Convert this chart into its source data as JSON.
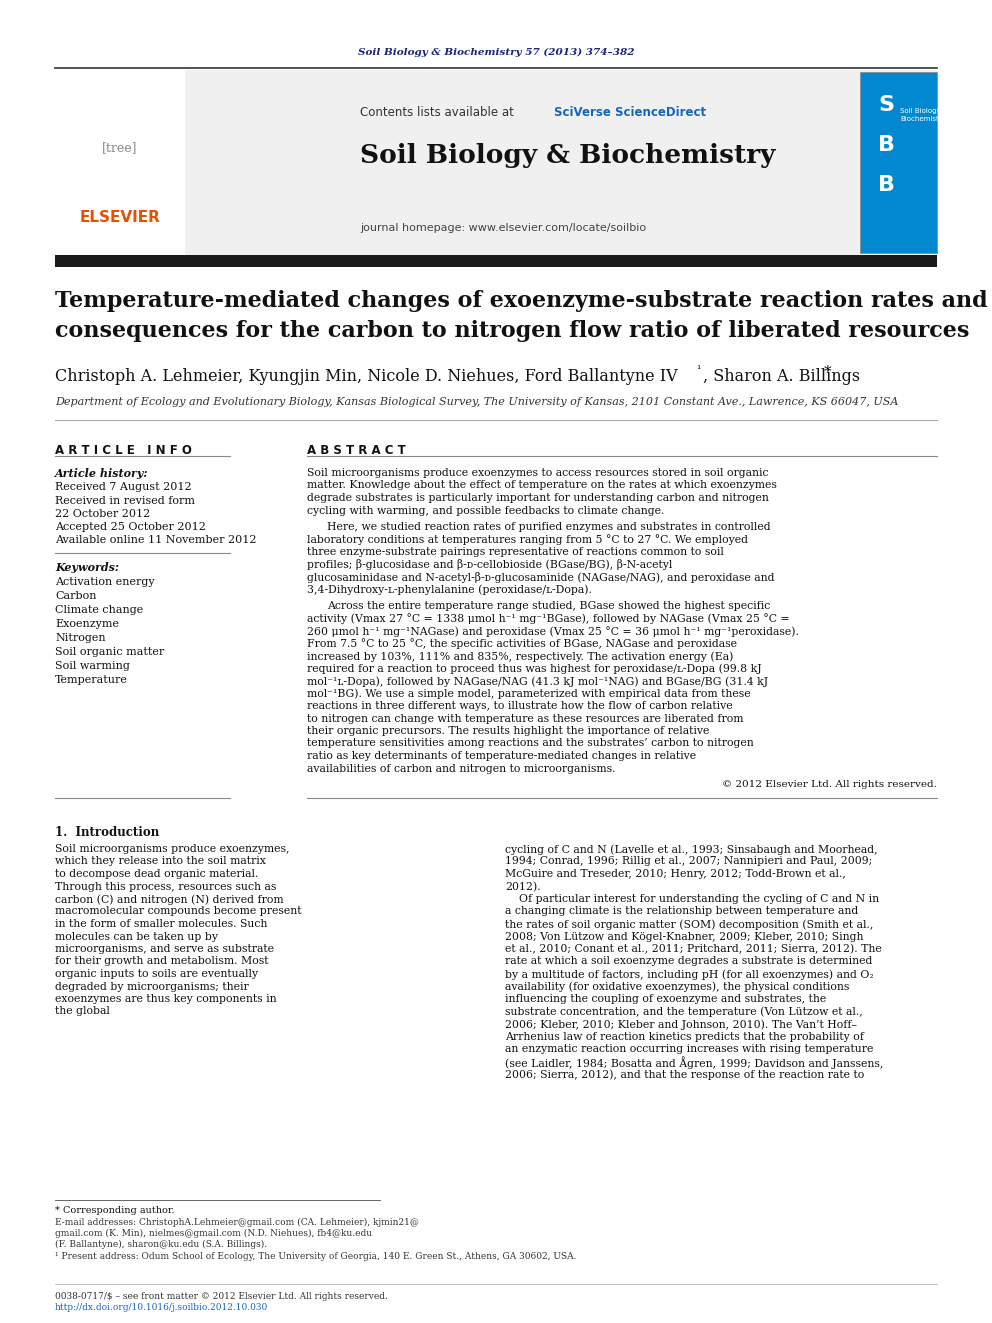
{
  "page_bg": "#ffffff",
  "journal_ref_color": "#1a237e",
  "journal_ref": "Soil Biology & Biochemistry 57 (2013) 374–382",
  "sciverse_color": "#1565c0",
  "journal_title": "Soil Biology & Biochemistry",
  "homepage_text": "journal homepage: www.elsevier.com/locate/soilbio",
  "affiliation": "Department of Ecology and Evolutionary Biology, Kansas Biological Survey, The University of Kansas, 2101 Constant Ave., Lawrence, KS 66047, USA",
  "article_info_title": "A R T I C L E   I N F O",
  "abstract_title": "A B S T R A C T",
  "received": "Received 7 August 2012",
  "accepted": "Accepted 25 October 2012",
  "available": "Available online 11 November 2012",
  "keywords": [
    "Activation energy",
    "Carbon",
    "Climate change",
    "Exoenzyme",
    "Nitrogen",
    "Soil organic matter",
    "Soil warming",
    "Temperature"
  ],
  "abstract_p1": "Soil microorganisms produce exoenzymes to access resources stored in soil organic matter. Knowledge about the effect of temperature on the rates at which exoenzymes degrade substrates is particularly important for understanding carbon and nitrogen cycling with warming, and possible feedbacks to climate change.",
  "abstract_p2": "Here, we studied reaction rates of purified enzymes and substrates in controlled laboratory conditions at temperatures ranging from 5 °C to 27 °C. We employed three enzyme-substrate pairings representative of reactions common to soil profiles; β-glucosidase and β-ᴅ-cellobioside (BGase/BG), β-N-acetyl glucosaminidase and N-acetyl-β-ᴅ-glucosaminide (NAGase/NAG), and peroxidase and 3,4-Dihydroxy-ʟ-phenylalanine (peroxidase/ʟ-Dopa).",
  "abstract_p3": "Across the entire temperature range studied, BGase showed the highest specific activity (Vmax 27 °C = 1338 μmol h⁻¹ mg⁻¹BGase), followed by NAGase (Vmax 25 °C = 260 μmol h⁻¹ mg⁻¹NAGase) and peroxidase (Vmax 25 °C = 36 μmol h⁻¹ mg⁻¹peroxidase). From 7.5 °C to 25 °C, the specific activities of BGase, NAGase and peroxidase increased by 103%, 111% and 835%, respectively. The activation energy (Ea) required for a reaction to proceed thus was highest for peroxidase/ʟ-Dopa (99.8 kJ mol⁻¹ʟ-Dopa), followed by NAGase/NAG (41.3 kJ mol⁻¹NAG) and BGase/BG (31.4 kJ mol⁻¹BG). We use a simple model, parameterized with empirical data from these reactions in three different ways, to illustrate how the flow of carbon relative to nitrogen can change with temperature as these resources are liberated from their organic precursors. The results highlight the importance of relative temperature sensitivities among reactions and the substrates’ carbon to nitrogen ratio as key determinants of temperature-mediated changes in relative availabilities of carbon and nitrogen to microorganisms.",
  "copyright": "© 2012 Elsevier Ltd. All rights reserved.",
  "intro_title": "1.  Introduction",
  "intro_text_left": "Soil microorganisms produce exoenzymes, which they release into the soil matrix to decompose dead organic material. Through this process, resources such as carbon (C) and nitrogen (N) derived from macromolecular compounds become present in the form of smaller molecules. Such molecules can be taken up by microorganisms, and serve as substrate for their growth and metabolism. Most organic inputs to soils are eventually degraded by microorganisms; their exoenzymes are thus key components in the global",
  "right_intro_parts": [
    "cycling of C and N (Lavelle et al., 1993; Sinsabaugh and Moorhead,",
    "1994; Conrad, 1996; Rillig et al., 2007; Nannipieri and Paul, 2009;",
    "McGuire and Treseder, 2010; Henry, 2012; Todd-Brown et al.,",
    "2012).",
    "    Of particular interest for understanding the cycling of C and N in",
    "a changing climate is the relationship between temperature and",
    "the rates of soil organic matter (SOM) decomposition (Smith et al.,",
    "2008; Von Lützow and Kögel-Knabner, 2009; Kleber, 2010; Singh",
    "et al., 2010; Conant et al., 2011; Pritchard, 2011; Sierra, 2012). The",
    "rate at which a soil exoenzyme degrades a substrate is determined",
    "by a multitude of factors, including pH (for all exoenzymes) and O₂",
    "availability (for oxidative exoenzymes), the physical conditions",
    "influencing the coupling of exoenzyme and substrates, the",
    "substrate concentration, and the temperature (Von Lützow et al.,",
    "2006; Kleber, 2010; Kleber and Johnson, 2010). The Van’t Hoff–",
    "Arrhenius law of reaction kinetics predicts that the probability of",
    "an enzymatic reaction occurring increases with rising temperature",
    "(see Laidler, 1984; Bosatta and Ågren, 1999; Davidson and Janssens,",
    "2006; Sierra, 2012), and that the response of the reaction rate to"
  ],
  "footer_line1": "0038-0717/$ – see front matter © 2012 Elsevier Ltd. All rights reserved.",
  "footer_line2": "http://dx.doi.org/10.1016/j.soilbio.2012.10.030",
  "footnote_star": "* Corresponding author.",
  "footnote_1": "¹ Present address: Odum School of Ecology, The University of Georgia, 140 E. Green St., Athens, GA 30602, USA."
}
